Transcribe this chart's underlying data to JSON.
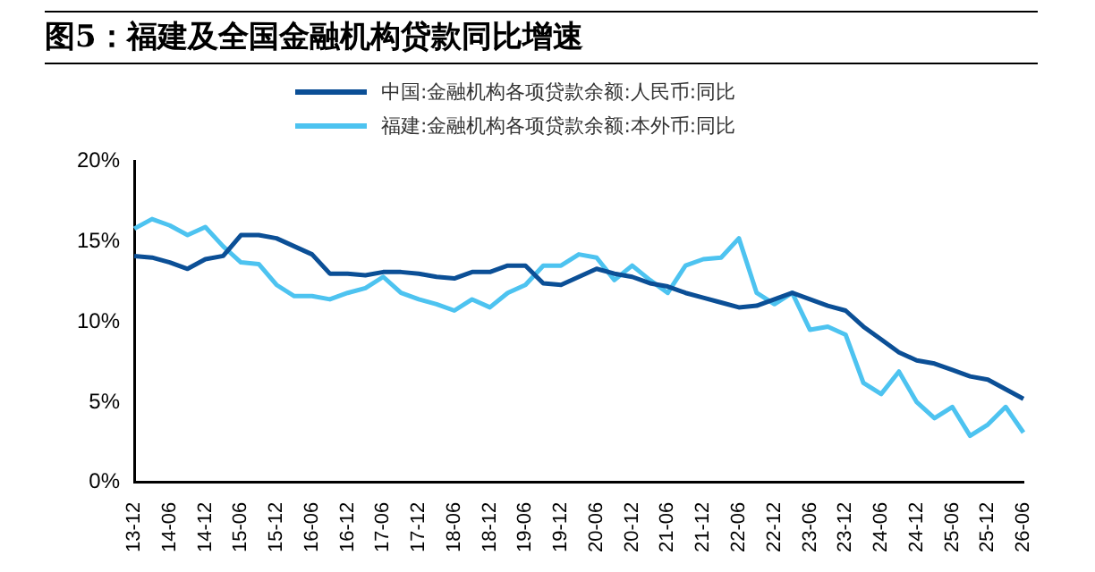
{
  "chart_data": {
    "type": "line",
    "title": "图5：福建及全国金融机构贷款同比增速",
    "categories": [
      "13-12",
      null,
      "14-06",
      null,
      "14-12",
      null,
      "15-06",
      null,
      "15-12",
      null,
      "16-06",
      null,
      "16-12",
      null,
      "17-06",
      null,
      "17-12",
      null,
      "18-06",
      null,
      "18-12",
      null,
      "19-06",
      null,
      "19-12",
      null,
      "20-06",
      null,
      "20-12",
      null,
      "21-06",
      null,
      "21-12",
      null,
      "22-06",
      null,
      "22-12",
      null,
      "23-06",
      null,
      "23-12",
      null,
      "24-06",
      null,
      "24-12",
      null,
      "25-06",
      null,
      "25-12",
      null,
      "26-06"
    ],
    "series": [
      {
        "name": "中国:金融机构各项贷款余额:人民币:同比",
        "color": "#0b4f96",
        "values": [
          14.1,
          14.0,
          13.7,
          13.3,
          13.9,
          14.1,
          15.4,
          15.4,
          15.2,
          14.7,
          14.2,
          13.0,
          13.0,
          12.9,
          13.1,
          13.1,
          13.0,
          12.8,
          12.7,
          13.1,
          13.1,
          13.5,
          13.5,
          12.4,
          12.3,
          12.8,
          13.3,
          13.0,
          12.8,
          12.4,
          12.2,
          11.8,
          11.5,
          11.2,
          10.9,
          11.0,
          11.4,
          11.8,
          11.4,
          11.0,
          10.7,
          9.7,
          8.9,
          8.1,
          7.6,
          7.4,
          7.0,
          6.6,
          6.4,
          5.8,
          5.2
        ]
      },
      {
        "name": "福建:金融机构各项贷款余额:本外币:同比",
        "color": "#4dc3f0",
        "values": [
          15.8,
          16.4,
          16.0,
          15.4,
          15.9,
          14.7,
          13.7,
          13.6,
          12.3,
          11.6,
          11.6,
          11.4,
          11.8,
          12.1,
          12.8,
          11.8,
          11.4,
          11.1,
          10.7,
          11.4,
          10.9,
          11.8,
          12.3,
          13.5,
          13.5,
          14.2,
          14.0,
          12.6,
          13.5,
          12.6,
          11.8,
          13.5,
          13.9,
          14.0,
          15.2,
          11.8,
          11.1,
          11.8,
          9.5,
          9.7,
          9.2,
          6.2,
          5.5,
          6.9,
          5.0,
          4.0,
          4.7,
          2.9,
          3.6,
          4.7,
          3.1
        ]
      }
    ],
    "ylim": [
      0,
      20
    ],
    "yticks": [
      {
        "value": 0,
        "label": "0%"
      },
      {
        "value": 5,
        "label": "5%"
      },
      {
        "value": 10,
        "label": "10%"
      },
      {
        "value": 15,
        "label": "15%"
      },
      {
        "value": 20,
        "label": "20%"
      }
    ],
    "grid": false,
    "legend": "top",
    "marker": "none",
    "line_style": "solid"
  }
}
